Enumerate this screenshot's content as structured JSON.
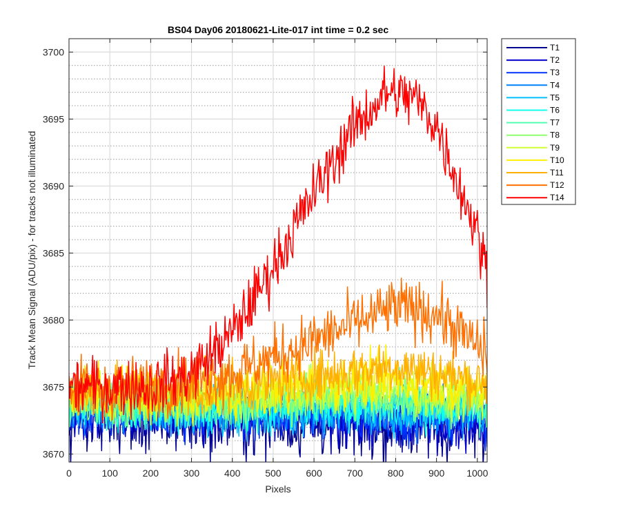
{
  "chart_data": {
    "type": "line",
    "title": "BS04 Day06 20180621-Lite-017 int time = 0.2 sec",
    "xlabel": "Pixels",
    "ylabel": "Track Mean Signal (ADU/pix) - for tracks not illuminated",
    "xlim": [
      0,
      1024
    ],
    "ylim": [
      3669.4,
      3701.0
    ],
    "xticks": [
      0,
      100,
      200,
      300,
      400,
      500,
      600,
      700,
      800,
      900,
      1000
    ],
    "yticks": [
      3670,
      3675,
      3680,
      3685,
      3690,
      3695,
      3700
    ],
    "grid": true,
    "minor_grid_y": true,
    "legend_position": "outside-top-right",
    "series": [
      {
        "name": "T1",
        "color": "#00008f",
        "profile": [
          [
            0,
            3672.5
          ],
          [
            300,
            3672.4
          ],
          [
            600,
            3672.2
          ],
          [
            800,
            3672.0
          ],
          [
            1024,
            3671.9
          ]
        ],
        "noise": 1.2
      },
      {
        "name": "T2",
        "color": "#0000cf",
        "profile": [
          [
            0,
            3673.5
          ],
          [
            300,
            3672.8
          ],
          [
            600,
            3672.6
          ],
          [
            800,
            3672.4
          ],
          [
            1024,
            3672.2
          ]
        ],
        "noise": 1.0
      },
      {
        "name": "T3",
        "color": "#0033ff",
        "profile": [
          [
            0,
            3673.3
          ],
          [
            300,
            3673.0
          ],
          [
            600,
            3672.9
          ],
          [
            800,
            3672.8
          ],
          [
            1024,
            3672.6
          ]
        ],
        "noise": 0.9
      },
      {
        "name": "T4",
        "color": "#0080ff",
        "profile": [
          [
            0,
            3673.5
          ],
          [
            300,
            3673.1
          ],
          [
            600,
            3673.2
          ],
          [
            800,
            3673.1
          ],
          [
            1024,
            3672.9
          ]
        ],
        "noise": 0.9
      },
      {
        "name": "T5",
        "color": "#00bfff",
        "profile": [
          [
            0,
            3673.7
          ],
          [
            300,
            3673.2
          ],
          [
            600,
            3673.4
          ],
          [
            800,
            3673.4
          ],
          [
            1024,
            3673.1
          ]
        ],
        "noise": 0.9
      },
      {
        "name": "T6",
        "color": "#10ffef",
        "profile": [
          [
            0,
            3673.8
          ],
          [
            300,
            3673.4
          ],
          [
            600,
            3673.6
          ],
          [
            800,
            3673.7
          ],
          [
            1024,
            3673.3
          ]
        ],
        "noise": 0.9
      },
      {
        "name": "T7",
        "color": "#50ffaf",
        "profile": [
          [
            0,
            3674.0
          ],
          [
            300,
            3673.6
          ],
          [
            600,
            3673.9
          ],
          [
            800,
            3674.0
          ],
          [
            1024,
            3673.6
          ]
        ],
        "noise": 0.9
      },
      {
        "name": "T8",
        "color": "#8fff70",
        "profile": [
          [
            0,
            3674.2
          ],
          [
            300,
            3673.8
          ],
          [
            600,
            3674.3
          ],
          [
            800,
            3674.4
          ],
          [
            1024,
            3673.9
          ]
        ],
        "noise": 0.9
      },
      {
        "name": "T9",
        "color": "#cfff30",
        "profile": [
          [
            0,
            3674.4
          ],
          [
            300,
            3674.0
          ],
          [
            600,
            3674.7
          ],
          [
            800,
            3674.9
          ],
          [
            1024,
            3674.3
          ]
        ],
        "noise": 0.9
      },
      {
        "name": "T10",
        "color": "#ffef00",
        "profile": [
          [
            0,
            3674.6
          ],
          [
            300,
            3674.3
          ],
          [
            600,
            3675.2
          ],
          [
            800,
            3675.6
          ],
          [
            1024,
            3674.8
          ]
        ],
        "noise": 1.0
      },
      {
        "name": "T11",
        "color": "#ffb000",
        "profile": [
          [
            0,
            3674.8
          ],
          [
            300,
            3674.6
          ],
          [
            600,
            3675.8
          ],
          [
            800,
            3676.6
          ],
          [
            1024,
            3675.3
          ]
        ],
        "noise": 1.0
      },
      {
        "name": "T12",
        "color": "#ff7000",
        "profile": [
          [
            0,
            3675.0
          ],
          [
            200,
            3675.0
          ],
          [
            400,
            3676.0
          ],
          [
            600,
            3678.5
          ],
          [
            800,
            3681.0
          ],
          [
            900,
            3680.5
          ],
          [
            1024,
            3677.5
          ]
        ],
        "noise": 1.1
      },
      {
        "name": "T14",
        "color": "#ff0000",
        "profile": [
          [
            0,
            3675.0
          ],
          [
            200,
            3675.0
          ],
          [
            300,
            3676.0
          ],
          [
            400,
            3679.0
          ],
          [
            500,
            3684.0
          ],
          [
            600,
            3689.5
          ],
          [
            700,
            3694.5
          ],
          [
            780,
            3697.0
          ],
          [
            850,
            3696.5
          ],
          [
            900,
            3694.5
          ],
          [
            1000,
            3686.5
          ],
          [
            1024,
            3683.5
          ]
        ],
        "noise": 1.1
      }
    ]
  }
}
